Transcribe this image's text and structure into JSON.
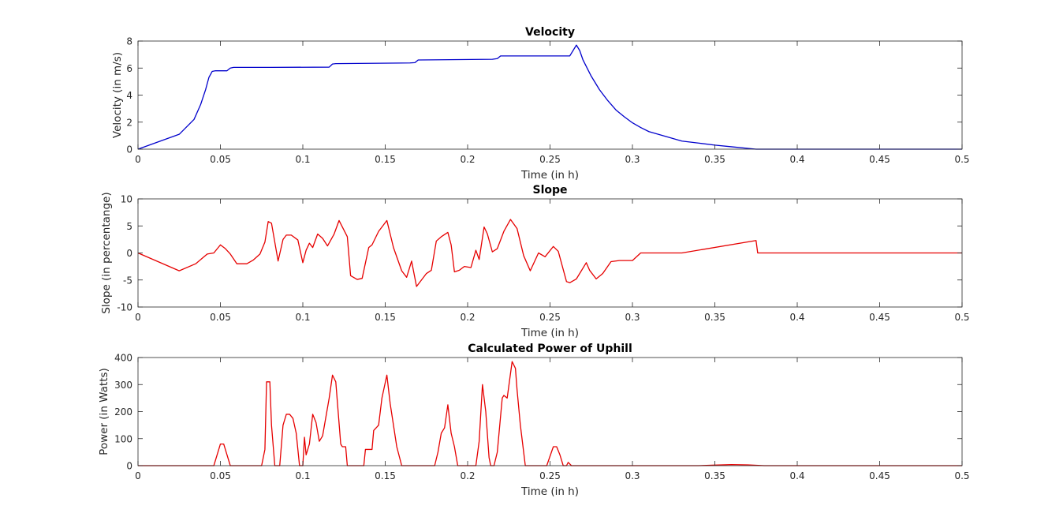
{
  "chart_data": [
    {
      "type": "line",
      "title": "Velocity",
      "xlabel": "Time (in h)",
      "ylabel": "Velocity (in m/s)",
      "xlim": [
        0,
        0.5
      ],
      "ylim": [
        0,
        8
      ],
      "xticks": [
        0,
        0.05,
        0.1,
        0.15,
        0.2,
        0.25,
        0.3,
        0.35,
        0.4,
        0.45,
        0.5
      ],
      "xtick_labels": [
        "0",
        "0.05",
        "0.1",
        "0.15",
        "0.2",
        "0.25",
        "0.3",
        "0.35",
        "0.4",
        "0.45",
        "0.5"
      ],
      "yticks": [
        0,
        2,
        4,
        6,
        8
      ],
      "ytick_labels": [
        "0",
        "2",
        "4",
        "6",
        "8"
      ],
      "grid": false,
      "color": "#0000cc",
      "series": [
        {
          "x": [
            0,
            0.025,
            0.034,
            0.038,
            0.041,
            0.043,
            0.045,
            0.047,
            0.054,
            0.056,
            0.058,
            0.08,
            0.116,
            0.118,
            0.12,
            0.165,
            0.168,
            0.17,
            0.215,
            0.218,
            0.22,
            0.262,
            0.266,
            0.268,
            0.27,
            0.275,
            0.28,
            0.285,
            0.29,
            0.295,
            0.3,
            0.305,
            0.31,
            0.32,
            0.33,
            0.34,
            0.35,
            0.36,
            0.37,
            0.375,
            0.5
          ],
          "y": [
            0,
            1.1,
            2.2,
            3.3,
            4.4,
            5.3,
            5.75,
            5.8,
            5.8,
            6.0,
            6.05,
            6.05,
            6.07,
            6.3,
            6.33,
            6.38,
            6.4,
            6.6,
            6.65,
            6.7,
            6.9,
            6.9,
            7.7,
            7.3,
            6.6,
            5.4,
            4.4,
            3.6,
            2.9,
            2.4,
            1.95,
            1.6,
            1.3,
            0.95,
            0.6,
            0.45,
            0.3,
            0.18,
            0.06,
            0,
            0
          ]
        }
      ]
    },
    {
      "type": "line",
      "title": "Slope",
      "xlabel": "Time (in h)",
      "ylabel": "Slope (in percentange)",
      "xlim": [
        0,
        0.5
      ],
      "ylim": [
        -10,
        10
      ],
      "xticks": [
        0,
        0.05,
        0.1,
        0.15,
        0.2,
        0.25,
        0.3,
        0.35,
        0.4,
        0.45,
        0.5
      ],
      "xtick_labels": [
        "0",
        "0.05",
        "0.1",
        "0.15",
        "0.2",
        "0.25",
        "0.3",
        "0.35",
        "0.4",
        "0.45",
        "0.5"
      ],
      "yticks": [
        -10,
        -5,
        0,
        5,
        10
      ],
      "ytick_labels": [
        "-10",
        "-5",
        "0",
        "5",
        "10"
      ],
      "grid": false,
      "color": "#e60000",
      "series": [
        {
          "x": [
            0,
            0.025,
            0.035,
            0.042,
            0.046,
            0.05,
            0.053,
            0.056,
            0.06,
            0.066,
            0.07,
            0.074,
            0.077,
            0.079,
            0.081,
            0.085,
            0.088,
            0.09,
            0.093,
            0.097,
            0.1,
            0.102,
            0.104,
            0.106,
            0.109,
            0.112,
            0.115,
            0.119,
            0.122,
            0.127,
            0.129,
            0.133,
            0.136,
            0.14,
            0.142,
            0.146,
            0.151,
            0.155,
            0.16,
            0.163,
            0.166,
            0.169,
            0.172,
            0.175,
            0.178,
            0.181,
            0.184,
            0.188,
            0.19,
            0.192,
            0.195,
            0.198,
            0.202,
            0.205,
            0.207,
            0.21,
            0.212,
            0.215,
            0.218,
            0.222,
            0.226,
            0.23,
            0.234,
            0.238,
            0.243,
            0.247,
            0.252,
            0.255,
            0.26,
            0.262,
            0.266,
            0.272,
            0.274,
            0.278,
            0.282,
            0.287,
            0.292,
            0.3,
            0.305,
            0.33,
            0.375,
            0.376,
            0.5
          ],
          "y": [
            0,
            -3.3,
            -2,
            -0.2,
            0,
            1.5,
            0.8,
            -0.2,
            -2,
            -2,
            -1.3,
            -0.2,
            2,
            5.8,
            5.5,
            -1.5,
            2.5,
            3.3,
            3.3,
            2.4,
            -1.8,
            0.5,
            1.8,
            1,
            3.5,
            2.7,
            1.3,
            3.5,
            6,
            3,
            -4.2,
            -4.9,
            -4.7,
            1,
            1.5,
            4,
            6,
            1,
            -3.3,
            -4.5,
            -1.5,
            -6.2,
            -5,
            -3.8,
            -3.2,
            2.2,
            3,
            3.8,
            1.5,
            -3.5,
            -3.2,
            -2.5,
            -2.7,
            0.5,
            -1.2,
            4.8,
            3.5,
            0.2,
            0.8,
            4,
            6.2,
            4.5,
            -0.5,
            -3.3,
            0,
            -0.7,
            1.2,
            0.3,
            -5.3,
            -5.5,
            -4.8,
            -1.8,
            -3.2,
            -4.8,
            -3.8,
            -1.6,
            -1.4,
            -1.4,
            0,
            0,
            2.3,
            0,
            0
          ]
        }
      ]
    },
    {
      "type": "line",
      "title": "Calculated Power of Uphill",
      "xlabel": "Time (in h)",
      "ylabel": "Power (in Watts)",
      "xlim": [
        0,
        0.5
      ],
      "ylim": [
        0,
        400
      ],
      "xticks": [
        0,
        0.05,
        0.1,
        0.15,
        0.2,
        0.25,
        0.3,
        0.35,
        0.4,
        0.45,
        0.5
      ],
      "xtick_labels": [
        "0",
        "0.05",
        "0.1",
        "0.15",
        "0.2",
        "0.25",
        "0.3",
        "0.35",
        "0.4",
        "0.45",
        "0.5"
      ],
      "yticks": [
        0,
        100,
        200,
        300,
        400
      ],
      "ytick_labels": [
        "0",
        "100",
        "200",
        "300",
        "400"
      ],
      "grid": false,
      "color": "#e60000",
      "series": [
        {
          "x": [
            0,
            0.046,
            0.048,
            0.05,
            0.052,
            0.054,
            0.056,
            0.075,
            0.077,
            0.078,
            0.08,
            0.081,
            0.083,
            0.086,
            0.088,
            0.09,
            0.092,
            0.094,
            0.096,
            0.098,
            0.1,
            0.101,
            0.102,
            0.104,
            0.106,
            0.108,
            0.11,
            0.112,
            0.116,
            0.118,
            0.12,
            0.123,
            0.124,
            0.126,
            0.127,
            0.133,
            0.135,
            0.137,
            0.138,
            0.14,
            0.142,
            0.143,
            0.146,
            0.148,
            0.151,
            0.153,
            0.157,
            0.16,
            0.18,
            0.182,
            0.184,
            0.186,
            0.188,
            0.19,
            0.192,
            0.194,
            0.205,
            0.207,
            0.209,
            0.211,
            0.213,
            0.214,
            0.216,
            0.218,
            0.221,
            0.222,
            0.224,
            0.227,
            0.229,
            0.23,
            0.232,
            0.235,
            0.238,
            0.248,
            0.252,
            0.254,
            0.256,
            0.258,
            0.26,
            0.261,
            0.263,
            0.265,
            0.34,
            0.35,
            0.36,
            0.37,
            0.38,
            0.5
          ],
          "y": [
            0,
            0,
            40,
            80,
            80,
            40,
            0,
            0,
            60,
            310,
            310,
            150,
            0,
            0,
            150,
            190,
            190,
            175,
            120,
            0,
            0,
            105,
            40,
            80,
            190,
            160,
            90,
            110,
            250,
            335,
            310,
            80,
            70,
            70,
            0,
            0,
            0,
            0,
            60,
            60,
            60,
            130,
            150,
            250,
            335,
            230,
            70,
            0,
            0,
            50,
            120,
            140,
            225,
            120,
            70,
            0,
            0,
            90,
            300,
            200,
            30,
            0,
            0,
            50,
            250,
            260,
            250,
            385,
            360,
            280,
            150,
            0,
            0,
            0,
            70,
            70,
            40,
            0,
            0,
            12,
            0,
            0,
            0,
            2,
            4,
            3,
            0,
            0
          ]
        }
      ]
    }
  ]
}
